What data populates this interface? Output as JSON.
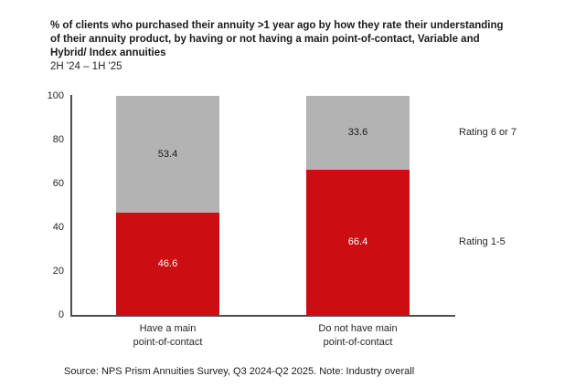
{
  "chart_data": {
    "type": "bar",
    "stacked": true,
    "title": "% of clients who purchased their annuity >1 year ago by how they rate their understanding of their annuity product, by having or not having a main point-of-contact, Variable and Hybrid/ Index annuities",
    "subtitle": "2H '24 – 1H '25",
    "categories": [
      "Have a main\npoint-of-contact",
      "Do not have main\npoint-of-contact"
    ],
    "series": [
      {
        "name": "Rating 1-5",
        "color": "#cc0d11",
        "label_color": "#ffffff",
        "values": [
          46.6,
          66.4
        ]
      },
      {
        "name": "Rating 6 or 7",
        "color": "#b3b3b3",
        "label_color": "#1a1a1a",
        "values": [
          53.4,
          33.6
        ]
      }
    ],
    "ylim": [
      0,
      100
    ],
    "yticks": [
      0,
      20,
      40,
      60,
      80,
      100
    ],
    "grid": false,
    "legend_position": "right",
    "source": "Source: NPS Prism Annuities Survey, Q3 2024-Q2 2025. Note: Industry overall"
  }
}
